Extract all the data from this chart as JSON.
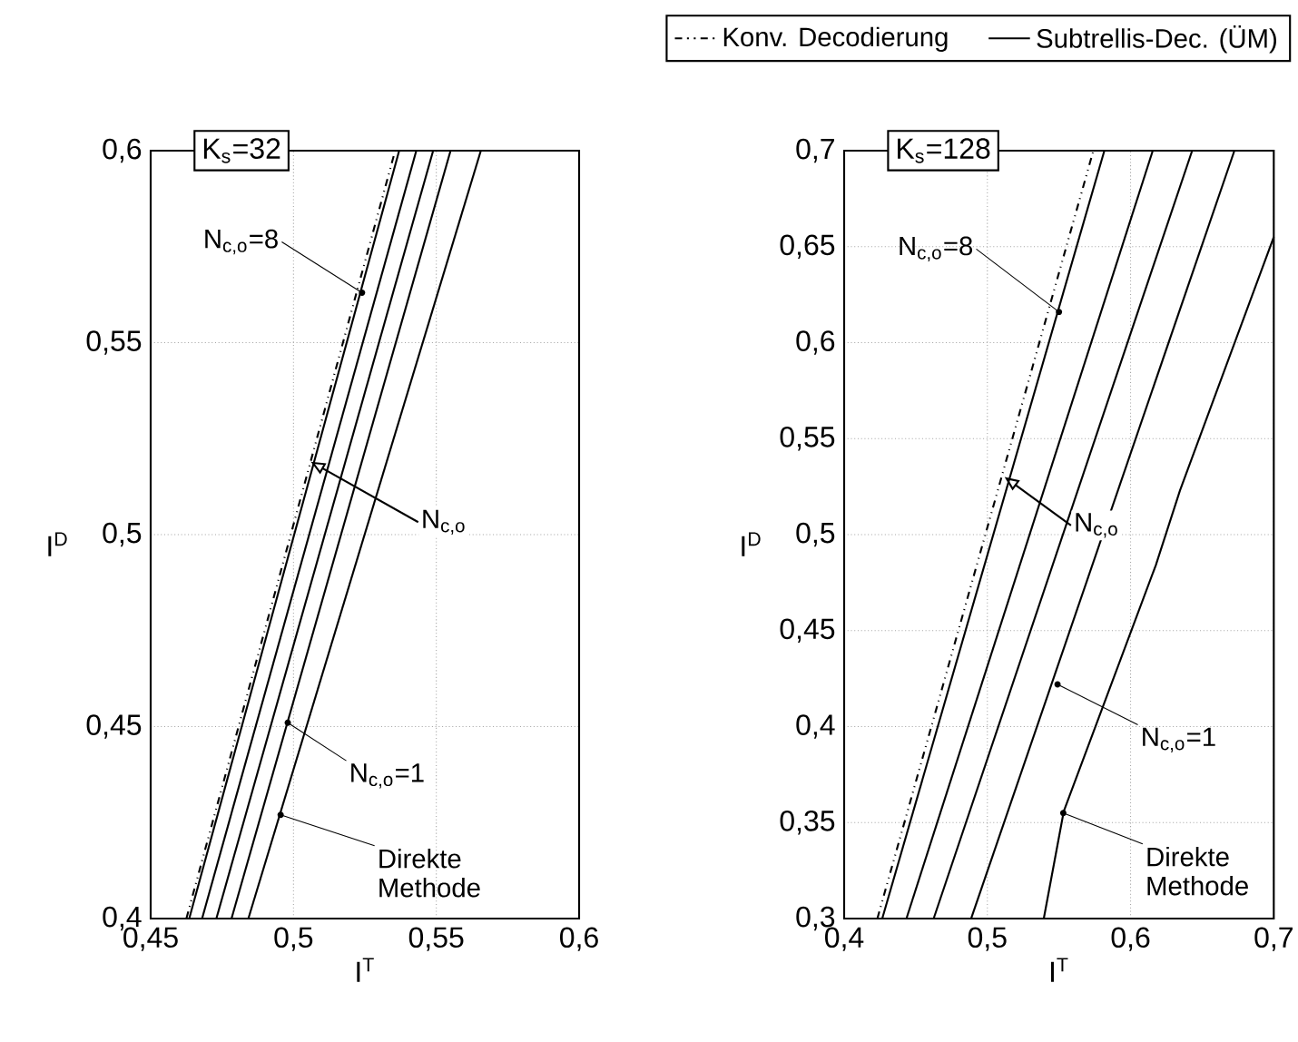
{
  "chart_data": [
    {
      "type": "line",
      "title": "K$_{s}$=32",
      "xlabel": "I$^{T}$",
      "ylabel": "I$^{D}$",
      "xlim": [
        0.45,
        0.6
      ],
      "ylim": [
        0.4,
        0.6
      ],
      "xticks": [
        {
          "value": 0.45,
          "label": "0,45"
        },
        {
          "value": 0.5,
          "label": "0,5"
        },
        {
          "value": 0.55,
          "label": "0,55"
        },
        {
          "value": 0.6,
          "label": "0,6"
        }
      ],
      "yticks": [
        {
          "value": 0.4,
          "label": "0,4"
        },
        {
          "value": 0.45,
          "label": "0,45"
        },
        {
          "value": 0.5,
          "label": "0,5"
        },
        {
          "value": 0.55,
          "label": "0,55"
        },
        {
          "value": 0.6,
          "label": "0,6"
        }
      ],
      "grid": true,
      "series": [
        {
          "color": "#000000",
          "line_style": "dashdot",
          "x": [
            0.4625,
            0.5356
          ],
          "values": [
            0.4,
            0.6
          ]
        },
        {
          "color": "#000000",
          "line_style": "solid",
          "x": [
            0.4635,
            0.537
          ],
          "values": [
            0.4,
            0.6
          ]
        },
        {
          "color": "#000000",
          "line_style": "solid",
          "x": [
            0.468,
            0.543
          ],
          "values": [
            0.4,
            0.6
          ]
        },
        {
          "color": "#000000",
          "line_style": "solid",
          "x": [
            0.473,
            0.5489
          ],
          "values": [
            0.4,
            0.6
          ]
        },
        {
          "color": "#000000",
          "line_style": "solid",
          "x": [
            0.4783,
            0.555
          ],
          "values": [
            0.4,
            0.6
          ]
        },
        {
          "color": "#000000",
          "line_style": "solid",
          "x": [
            0.4842,
            0.5656
          ],
          "values": [
            0.4,
            0.6
          ]
        }
      ],
      "annotations": [
        {
          "text": "N$_{c,o}$=8",
          "x": 0.524,
          "y": 0.563
        },
        {
          "text": "N$_{c,o}$",
          "x": 0.506,
          "y": 0.519
        },
        {
          "text": "N$_{c,o}$=1",
          "x": 0.498,
          "y": 0.451
        },
        {
          "text": "Direkte Methode",
          "x": 0.4955,
          "y": 0.427
        }
      ]
    },
    {
      "type": "line",
      "title": "K$_{s}$=128",
      "xlabel": "I$^{T}$",
      "ylabel": "I$^{D}$",
      "xlim": [
        0.4,
        0.7
      ],
      "ylim": [
        0.3,
        0.7
      ],
      "xticks": [
        {
          "value": 0.4,
          "label": "0,4"
        },
        {
          "value": 0.5,
          "label": "0,5"
        },
        {
          "value": 0.6,
          "label": "0,6"
        },
        {
          "value": 0.7,
          "label": "0,7"
        }
      ],
      "yticks": [
        {
          "value": 0.3,
          "label": "0,3"
        },
        {
          "value": 0.35,
          "label": "0,35"
        },
        {
          "value": 0.4,
          "label": "0,4"
        },
        {
          "value": 0.45,
          "label": "0,45"
        },
        {
          "value": 0.5,
          "label": "0,5"
        },
        {
          "value": 0.55,
          "label": "0,55"
        },
        {
          "value": 0.6,
          "label": "0,6"
        },
        {
          "value": 0.65,
          "label": "0,65"
        },
        {
          "value": 0.7,
          "label": "0,7"
        }
      ],
      "grid": true,
      "legend": "top",
      "series": [
        {
          "name": "Konv. Decodierung",
          "color": "#000000",
          "line_style": "dashdot",
          "x": [
            0.4232,
            0.574
          ],
          "values": [
            0.3,
            0.7
          ]
        },
        {
          "name": "Subtrellis-Dec. (ÜM)",
          "color": "#000000",
          "line_style": "solid",
          "x": [
            0.4266,
            0.5817
          ],
          "values": [
            0.3,
            0.7
          ]
        },
        {
          "color": "#000000",
          "line_style": "solid",
          "x": [
            0.4435,
            0.6155
          ],
          "values": [
            0.3,
            0.7
          ]
        },
        {
          "color": "#000000",
          "line_style": "solid",
          "x": [
            0.4625,
            0.643
          ],
          "values": [
            0.3,
            0.7
          ]
        },
        {
          "color": "#000000",
          "line_style": "solid",
          "x": [
            0.4887,
            0.6725
          ],
          "values": [
            0.3,
            0.7
          ]
        },
        {
          "color": "#000000",
          "line_style": "solid",
          "x": [
            0.5394,
            0.5534,
            0.6176,
            0.6345,
            0.7
          ],
          "values": [
            0.3,
            0.356,
            0.484,
            0.523,
            0.655
          ]
        }
      ],
      "annotations": [
        {
          "text": "N$_{c,o}$=8",
          "x": 0.55,
          "y": 0.616
        },
        {
          "text": "N$_{c,o}$",
          "x": 0.512,
          "y": 0.53
        },
        {
          "text": "N$_{c,o}$=1",
          "x": 0.549,
          "y": 0.422
        },
        {
          "text": "Direkte Methode",
          "x": 0.553,
          "y": 0.355
        }
      ]
    }
  ]
}
